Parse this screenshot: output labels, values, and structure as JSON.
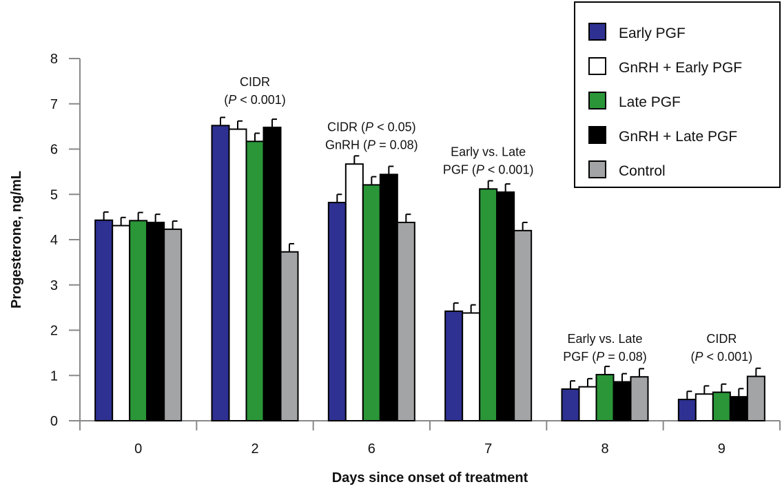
{
  "chart_data": {
    "type": "bar",
    "xlabel": "Days since onset of treatment",
    "ylabel": "Progesterone, ng/mL",
    "ylim": [
      0,
      8
    ],
    "yticks": [
      0,
      1,
      2,
      3,
      4,
      5,
      6,
      7,
      8
    ],
    "grid": false,
    "legend_position": "top-right",
    "categories": [
      "0",
      "2",
      "6",
      "7",
      "8",
      "9"
    ],
    "series": [
      {
        "name": "Early PGF",
        "color": "#2e3192",
        "values": [
          4.43,
          6.52,
          4.82,
          2.42,
          0.7,
          0.47
        ],
        "errors": [
          0.18,
          0.18,
          0.18,
          0.18,
          0.18,
          0.18
        ]
      },
      {
        "name": "GnRH + Early PGF",
        "color": "#ffffff",
        "values": [
          4.31,
          6.44,
          5.67,
          2.38,
          0.75,
          0.59
        ],
        "errors": [
          0.18,
          0.18,
          0.18,
          0.18,
          0.18,
          0.18
        ]
      },
      {
        "name": "Late PGF",
        "color": "#2a9638",
        "values": [
          4.42,
          6.17,
          5.21,
          5.12,
          1.02,
          0.63
        ],
        "errors": [
          0.18,
          0.18,
          0.18,
          0.18,
          0.18,
          0.18
        ]
      },
      {
        "name": "GnRH + Late PGF",
        "color": "#000000",
        "values": [
          4.38,
          6.48,
          5.44,
          5.05,
          0.86,
          0.53
        ],
        "errors": [
          0.18,
          0.18,
          0.18,
          0.18,
          0.18,
          0.18
        ]
      },
      {
        "name": "Control",
        "color": "#a2a4a6",
        "values": [
          4.23,
          3.73,
          4.38,
          4.2,
          0.97,
          0.98
        ],
        "errors": [
          0.18,
          0.18,
          0.18,
          0.18,
          0.18,
          0.18
        ]
      }
    ],
    "annotations": [
      {
        "category": "2",
        "lines": [
          [
            {
              "t": "CIDR",
              "i": false
            }
          ],
          [
            {
              "t": "(",
              "i": false
            },
            {
              "t": "P",
              "i": true
            },
            {
              "t": " < 0.001)",
              "i": false
            }
          ]
        ],
        "at_value": 7.0
      },
      {
        "category": "6",
        "lines": [
          [
            {
              "t": "CIDR (",
              "i": false
            },
            {
              "t": "P",
              "i": true
            },
            {
              "t": " < 0.05)",
              "i": false
            }
          ],
          [
            {
              "t": "GnRH (",
              "i": false
            },
            {
              "t": "P",
              "i": true
            },
            {
              "t": " = 0.08)",
              "i": false
            }
          ]
        ],
        "at_value": 6.0
      },
      {
        "category": "7",
        "lines": [
          [
            {
              "t": "Early vs. Late",
              "i": false
            }
          ],
          [
            {
              "t": "PGF (",
              "i": false
            },
            {
              "t": "P",
              "i": true
            },
            {
              "t": " < 0.001)",
              "i": false
            }
          ]
        ],
        "at_value": 5.45
      },
      {
        "category": "8",
        "lines": [
          [
            {
              "t": "Early vs. Late",
              "i": false
            }
          ],
          [
            {
              "t": "PGF (",
              "i": false
            },
            {
              "t": "P",
              "i": true
            },
            {
              "t": " = 0.08)",
              "i": false
            }
          ]
        ],
        "at_value": 1.32
      },
      {
        "category": "9",
        "lines": [
          [
            {
              "t": "CIDR",
              "i": false
            }
          ],
          [
            {
              "t": "(",
              "i": false
            },
            {
              "t": "P",
              "i": true
            },
            {
              "t": " < 0.001)",
              "i": false
            }
          ]
        ],
        "at_value": 1.32
      }
    ]
  }
}
